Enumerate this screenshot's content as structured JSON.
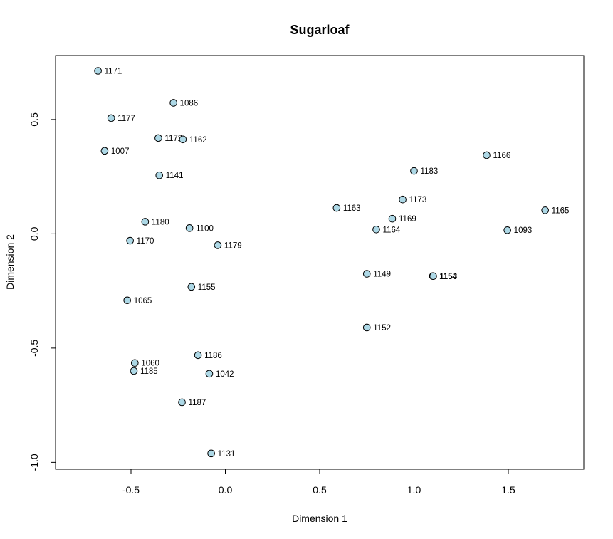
{
  "chart_data": {
    "type": "scatter",
    "title": "Sugarloaf",
    "xlabel": "Dimension 1",
    "ylabel": "Dimension 2",
    "xlim": [
      -0.9,
      1.9
    ],
    "ylim": [
      -1.03,
      0.78
    ],
    "x_ticks": [
      -0.5,
      0.0,
      0.5,
      1.0,
      1.5
    ],
    "x_tick_labels": [
      "-0.5",
      "0.0",
      "0.5",
      "1.0",
      "1.5"
    ],
    "y_ticks": [
      -1.0,
      -0.5,
      0.0,
      0.5
    ],
    "y_tick_labels": [
      "-1.0",
      "-0.5",
      "0.0",
      "0.5"
    ],
    "grid": false,
    "point_fill": "#add8e6",
    "point_stroke": "#000000",
    "points": [
      {
        "label": "1171",
        "x": -0.675,
        "y": 0.713
      },
      {
        "label": "1086",
        "x": -0.275,
        "y": 0.573
      },
      {
        "label": "1177",
        "x": -0.605,
        "y": 0.506
      },
      {
        "label": "1172",
        "x": -0.355,
        "y": 0.419
      },
      {
        "label": "1162",
        "x": -0.225,
        "y": 0.413
      },
      {
        "label": "1007",
        "x": -0.64,
        "y": 0.363
      },
      {
        "label": "1141",
        "x": -0.35,
        "y": 0.256
      },
      {
        "label": "1180",
        "x": -0.425,
        "y": 0.053
      },
      {
        "label": "1100",
        "x": -0.19,
        "y": 0.025
      },
      {
        "label": "1170",
        "x": -0.505,
        "y": -0.03
      },
      {
        "label": "1179",
        "x": -0.04,
        "y": -0.05
      },
      {
        "label": "1155",
        "x": -0.18,
        "y": -0.232
      },
      {
        "label": "1065",
        "x": -0.52,
        "y": -0.291
      },
      {
        "label": "1186",
        "x": -0.145,
        "y": -0.531
      },
      {
        "label": "1060",
        "x": -0.48,
        "y": -0.565
      },
      {
        "label": "1185",
        "x": -0.485,
        "y": -0.6
      },
      {
        "label": "1042",
        "x": -0.085,
        "y": -0.612
      },
      {
        "label": "1187",
        "x": -0.23,
        "y": -0.737
      },
      {
        "label": "1131",
        "x": -0.075,
        "y": -0.961
      },
      {
        "label": "1166",
        "x": 1.385,
        "y": 0.344
      },
      {
        "label": "1183",
        "x": 1.0,
        "y": 0.275
      },
      {
        "label": "1173",
        "x": 0.94,
        "y": 0.15
      },
      {
        "label": "1165",
        "x": 1.695,
        "y": 0.103
      },
      {
        "label": "1163",
        "x": 0.59,
        "y": 0.113
      },
      {
        "label": "1169",
        "x": 0.885,
        "y": 0.066
      },
      {
        "label": "1164",
        "x": 0.8,
        "y": 0.019
      },
      {
        "label": "1093",
        "x": 1.495,
        "y": 0.016
      },
      {
        "label": "1149",
        "x": 0.75,
        "y": -0.175
      },
      {
        "label": "1154",
        "x": 1.1,
        "y": -0.185
      },
      {
        "label": "1153",
        "x": 1.102,
        "y": -0.185
      },
      {
        "label": "1152",
        "x": 0.75,
        "y": -0.41
      }
    ]
  }
}
